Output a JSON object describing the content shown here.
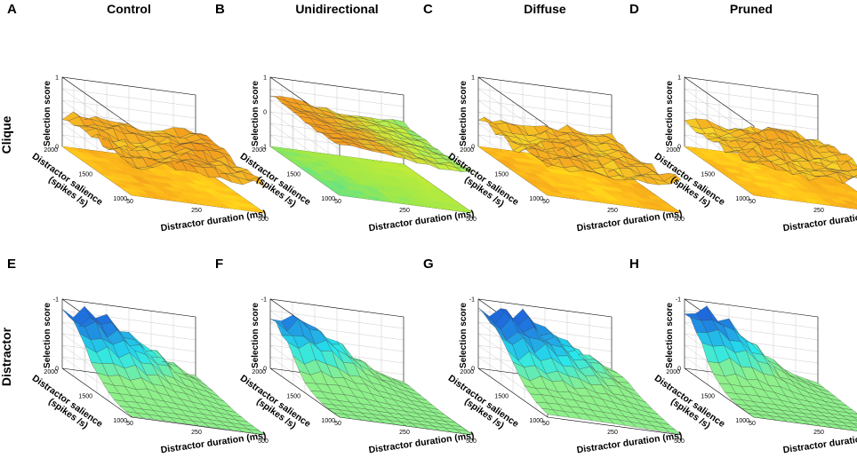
{
  "figure": {
    "row_labels": [
      "Clique",
      "Distractor"
    ],
    "z_axis_label": "Selection score",
    "x_axis_label": "Distractor duration (ms)",
    "y_axis_label_line1": "Distractor salience",
    "y_axis_label_line2": "(spikes /s)",
    "x_ticks": [
      "50",
      "250",
      "500"
    ],
    "y_ticks": [
      "2000",
      "1500",
      "1000"
    ]
  },
  "colors": {
    "clique_low": "#f7ef2a",
    "clique_high": "#f08a1a",
    "distractor_low": "#8df08a",
    "distractor_mid": "#26e6ee",
    "distractor_high": "#1b3fd4",
    "uni_floor": "#9ee84a",
    "mesh": "#333333",
    "grid": "#cccccc"
  },
  "chart_data": [
    {
      "panel": "A",
      "title": "Control",
      "row": "Clique",
      "type": "surface",
      "x": [
        50,
        250,
        500
      ],
      "y": [
        1000,
        1500,
        2000
      ],
      "zlim": [
        0,
        1
      ],
      "z_ticks": [
        "0",
        "1"
      ],
      "z_mean": 0.45,
      "z_variation": 0.06,
      "slope": 0
    },
    {
      "panel": "B",
      "title": "Unidirectional",
      "row": "Clique",
      "type": "surface",
      "x": [
        50,
        250,
        500
      ],
      "y": [
        1000,
        1500,
        2000
      ],
      "zlim": [
        -1,
        1
      ],
      "z_ticks": [
        "-1",
        "0",
        "1"
      ],
      "z_mean": 0.3,
      "z_variation": 0.05,
      "slope": -0.3
    },
    {
      "panel": "C",
      "title": "Diffuse",
      "row": "Clique",
      "type": "surface",
      "x": [
        50,
        250,
        500
      ],
      "y": [
        1000,
        1500,
        2000
      ],
      "zlim": [
        0,
        1
      ],
      "z_ticks": [
        "0",
        "1"
      ],
      "z_mean": 0.4,
      "z_variation": 0.07,
      "slope": 0
    },
    {
      "panel": "D",
      "title": "Pruned",
      "row": "Clique",
      "type": "surface",
      "x": [
        50,
        250,
        500
      ],
      "y": [
        1000,
        1500,
        2000
      ],
      "zlim": [
        0,
        1
      ],
      "z_ticks": [
        "0",
        "1"
      ],
      "z_mean": 0.4,
      "z_variation": 0.07,
      "slope": 0
    },
    {
      "panel": "E",
      "title": "",
      "row": "Distractor",
      "type": "surface",
      "x": [
        50,
        250,
        500
      ],
      "y": [
        1000,
        1500,
        2000
      ],
      "zlim": [
        0,
        -1
      ],
      "z_ticks": [
        "0",
        "-1"
      ],
      "peak": 0.92,
      "spread": 1.0
    },
    {
      "panel": "F",
      "title": "",
      "row": "Distractor",
      "type": "surface",
      "x": [
        50,
        250,
        500
      ],
      "y": [
        1000,
        1500,
        2000
      ],
      "zlim": [
        0,
        -1
      ],
      "z_ticks": [
        "0",
        "-1"
      ],
      "peak": 0.82,
      "spread": 0.7
    },
    {
      "panel": "G",
      "title": "",
      "row": "Distractor",
      "type": "surface",
      "x": [
        50,
        250,
        500
      ],
      "y": [
        1000,
        1500,
        2000
      ],
      "zlim": [
        0,
        -1
      ],
      "z_ticks": [
        "0",
        "-1"
      ],
      "peak": 0.95,
      "spread": 1.4
    },
    {
      "panel": "H",
      "title": "",
      "row": "Distractor",
      "type": "surface",
      "x": [
        50,
        250,
        500
      ],
      "y": [
        1000,
        1500,
        2000
      ],
      "zlim": [
        0,
        -1
      ],
      "z_ticks": [
        "0",
        "-1"
      ],
      "peak": 0.9,
      "spread": 0.6
    }
  ]
}
